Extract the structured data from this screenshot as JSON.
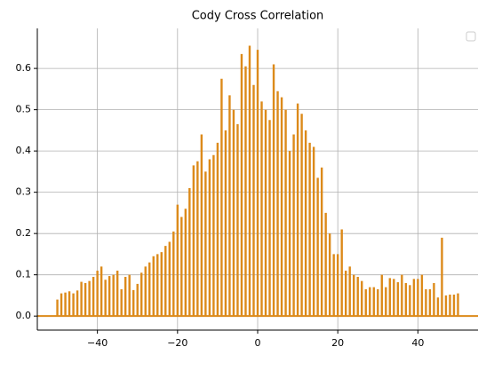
{
  "chart_data": {
    "type": "bar",
    "title": "Cody Cross Correlation",
    "x": [
      -50,
      -49,
      -48,
      -47,
      -46,
      -45,
      -44,
      -43,
      -42,
      -41,
      -40,
      -39,
      -38,
      -37,
      -36,
      -35,
      -34,
      -33,
      -32,
      -31,
      -30,
      -29,
      -28,
      -27,
      -26,
      -25,
      -24,
      -23,
      -22,
      -21,
      -20,
      -19,
      -18,
      -17,
      -16,
      -15,
      -14,
      -13,
      -12,
      -11,
      -10,
      -9,
      -8,
      -7,
      -6,
      -5,
      -4,
      -3,
      -2,
      -1,
      0,
      1,
      2,
      3,
      4,
      5,
      6,
      7,
      8,
      9,
      10,
      11,
      12,
      13,
      14,
      15,
      16,
      17,
      18,
      19,
      20,
      21,
      22,
      23,
      24,
      25,
      26,
      27,
      28,
      29,
      30,
      31,
      32,
      33,
      34,
      35,
      36,
      37,
      38,
      39,
      40,
      41,
      42,
      43,
      44,
      45,
      46,
      47,
      48,
      49,
      50
    ],
    "values": [
      0.04,
      0.055,
      0.057,
      0.06,
      0.055,
      0.062,
      0.083,
      0.08,
      0.085,
      0.095,
      0.11,
      0.12,
      0.088,
      0.097,
      0.1,
      0.11,
      0.065,
      0.095,
      0.1,
      0.063,
      0.078,
      0.105,
      0.12,
      0.13,
      0.145,
      0.15,
      0.155,
      0.17,
      0.18,
      0.205,
      0.27,
      0.24,
      0.26,
      0.31,
      0.365,
      0.375,
      0.44,
      0.35,
      0.38,
      0.39,
      0.42,
      0.575,
      0.45,
      0.535,
      0.5,
      0.465,
      0.635,
      0.605,
      0.655,
      0.56,
      0.645,
      0.52,
      0.5,
      0.475,
      0.61,
      0.545,
      0.53,
      0.5,
      0.4,
      0.44,
      0.515,
      0.49,
      0.45,
      0.42,
      0.41,
      0.335,
      0.36,
      0.25,
      0.2,
      0.15,
      0.15,
      0.21,
      0.11,
      0.12,
      0.1,
      0.095,
      0.085,
      0.065,
      0.07,
      0.07,
      0.065,
      0.1,
      0.07,
      0.092,
      0.09,
      0.082,
      0.1,
      0.08,
      0.075,
      0.09,
      0.09,
      0.1,
      0.065,
      0.065,
      0.08,
      0.045,
      0.19,
      0.05,
      0.052,
      0.052,
      0.055
    ],
    "color": "#dc8a1a",
    "xlim": [
      -55,
      55
    ],
    "ylim": [
      -0.034,
      0.697
    ],
    "xticks": [
      {
        "value": -40,
        "label": "−40"
      },
      {
        "value": -20,
        "label": "−20"
      },
      0,
      20,
      40
    ],
    "yticks": [
      {
        "value": 0,
        "label": "0.0"
      },
      0.1,
      0.2,
      0.3,
      0.4,
      0.5,
      0.6
    ],
    "grid": true,
    "legend": "upper right"
  }
}
